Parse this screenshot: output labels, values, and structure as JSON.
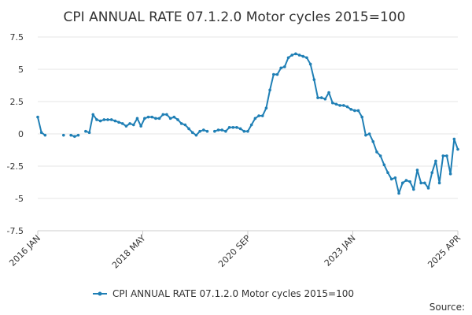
{
  "chart_data": {
    "type": "line",
    "title": "CPI ANNUAL RATE 07.1.2.0 Motor cycles 2015=100",
    "xlabel": "",
    "ylabel": "",
    "source_label": "Source:",
    "x_tick_labels": [
      "2016 JAN",
      "2018 MAY",
      "2020 SEP",
      "2023 JAN",
      "2025 APR"
    ],
    "y_tick_labels": [
      "7.5",
      "5",
      "2.5",
      "0",
      "-2.5",
      "-5",
      "-7.5"
    ],
    "y_ticks": [
      7.5,
      5,
      2.5,
      0,
      -2.5,
      -5,
      -7.5
    ],
    "ylim": [
      -7.5,
      7.5
    ],
    "x_range": [
      "2016 JAN",
      "2025 APR"
    ],
    "grid": "horizontal",
    "legend": "bottom",
    "series_color": "#1f7fb5",
    "series": [
      {
        "name": "CPI ANNUAL RATE 07.1.2.0 Motor cycles 2015=100",
        "values": [
          1.3,
          0.1,
          -0.1,
          null,
          null,
          null,
          null,
          -0.1,
          null,
          -0.1,
          -0.2,
          -0.1,
          null,
          0.2,
          0.1,
          1.5,
          1.1,
          1.0,
          1.1,
          1.1,
          1.1,
          1.0,
          0.9,
          0.8,
          0.6,
          0.8,
          0.7,
          1.2,
          0.6,
          1.2,
          1.3,
          1.3,
          1.2,
          1.2,
          1.5,
          1.5,
          1.2,
          1.3,
          1.1,
          0.8,
          0.7,
          0.4,
          0.1,
          -0.1,
          0.2,
          0.3,
          0.2,
          null,
          0.2,
          0.3,
          0.3,
          0.2,
          0.5,
          0.5,
          0.5,
          0.4,
          0.2,
          0.2,
          0.7,
          1.2,
          1.4,
          1.4,
          2.0,
          3.4,
          4.6,
          4.6,
          5.1,
          5.2,
          5.9,
          6.1,
          6.2,
          6.1,
          6.0,
          5.9,
          5.4,
          4.2,
          2.8,
          2.8,
          2.7,
          3.2,
          2.4,
          2.3,
          2.2,
          2.2,
          2.1,
          1.9,
          1.8,
          1.8,
          1.3,
          -0.1,
          0.0,
          -0.6,
          -1.4,
          -1.7,
          -2.4,
          -3.0,
          -3.5,
          -3.4,
          -4.6,
          -3.8,
          -3.6,
          -3.7,
          -4.3,
          -2.8,
          -3.8,
          -3.8,
          -4.2,
          -3.0,
          -2.1,
          -3.8,
          -1.7,
          -1.7,
          -3.1,
          -0.4,
          -1.2
        ]
      }
    ]
  }
}
